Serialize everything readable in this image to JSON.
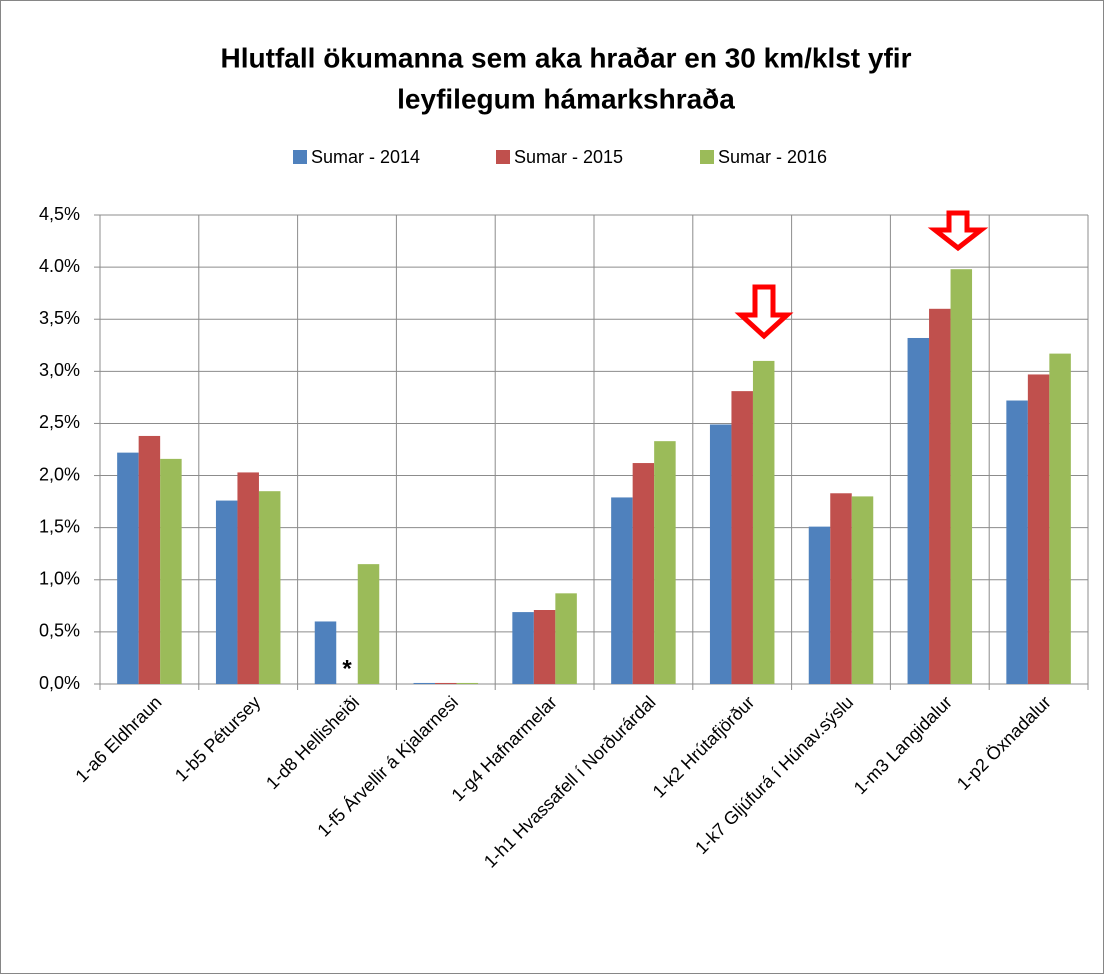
{
  "chart_data": {
    "type": "bar",
    "title": [
      "Hlutfall ökumanna sem aka hraðar en 30 km/klst yfir",
      "leyfilegum hámarkshraða"
    ],
    "categories": [
      "1-a6 Eldhraun",
      "1-b5 Pétursey",
      "1-d8 Hellisheiði",
      "1-f5 Árvellir á Kjalarnesi",
      "1-g4 Hafnarmelar",
      "1-h1 Hvassafell í Norðurárdal",
      "1-k2 Hrútafjörður",
      "1-k7 Gljúfurá í Húnav.sýslu",
      "1-m3 Langidalur",
      "1-p2 Öxnadalur"
    ],
    "series": [
      {
        "name": "Sumar - 2014",
        "color": "#4f81bd",
        "values": [
          2.22,
          1.76,
          0.6,
          0.01,
          0.69,
          1.79,
          2.49,
          1.51,
          3.32,
          2.72
        ]
      },
      {
        "name": "Sumar - 2015",
        "color": "#c0504d",
        "values": [
          2.38,
          2.03,
          null,
          0.01,
          0.71,
          2.12,
          2.81,
          1.83,
          3.6,
          2.97
        ]
      },
      {
        "name": "Sumar - 2016",
        "color": "#9bbb59",
        "values": [
          2.16,
          1.85,
          1.15,
          0.01,
          0.87,
          2.33,
          3.1,
          1.8,
          3.98,
          3.17
        ]
      }
    ],
    "annotations": [
      "*"
    ],
    "ylim": [
      0,
      4.5
    ],
    "yticks": [
      {
        "value": 0,
        "label": "0,0%"
      },
      {
        "value": 0.5,
        "label": "0,5%"
      },
      {
        "value": 1,
        "label": "1,0%"
      },
      {
        "value": 1.5,
        "label": "1,5%"
      },
      {
        "value": 2,
        "label": "2,0%"
      },
      {
        "value": 2.5,
        "label": "2,5%"
      },
      {
        "value": 3,
        "label": "3,0%"
      },
      {
        "value": 3.5,
        "label": "3,5%"
      },
      {
        "value": 4,
        "label": "4.0%"
      },
      {
        "value": 4.5,
        "label": "4,5%"
      }
    ],
    "grid": true,
    "legend": "top"
  }
}
